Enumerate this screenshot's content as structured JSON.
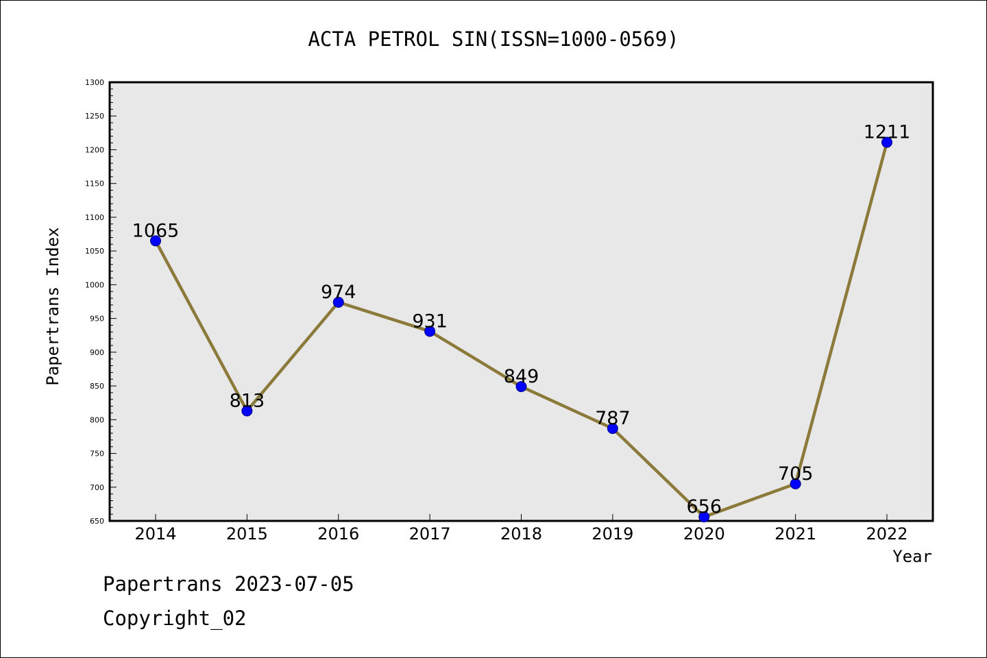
{
  "chart_data": {
    "type": "line",
    "title": "ACTA PETROL SIN(ISSN=1000-0569)",
    "xlabel": "Year",
    "ylabel": "Papertrans Index",
    "categories": [
      "2014",
      "2015",
      "2016",
      "2017",
      "2018",
      "2019",
      "2020",
      "2021",
      "2022"
    ],
    "series": [
      {
        "values": [
          1065,
          813,
          974,
          931,
          849,
          787,
          656,
          705,
          1211
        ]
      }
    ],
    "data_labels": [
      "1065",
      "813",
      "974",
      "931",
      "849",
      "787",
      "656",
      "705",
      "1211"
    ],
    "ylim": [
      650,
      1300
    ],
    "y_ticks": [
      650,
      700,
      750,
      800,
      850,
      900,
      950,
      1000,
      1050,
      1100,
      1150,
      1200,
      1250,
      1300
    ],
    "y_tick_labels": [
      "650",
      "700",
      "750",
      "800",
      "850",
      "900",
      "950",
      "1000",
      "1050",
      "1100",
      "1150",
      "1200",
      "1250",
      "1300"
    ],
    "y_minor_step": 10,
    "grid": false,
    "legend": "none",
    "colors": {
      "line": "#8b7a3a",
      "marker": "#0000ff",
      "marker_edge": "#000080",
      "plot_background": "#e8e8e8",
      "axes": "#000000"
    }
  },
  "footer": {
    "line1": "Papertrans 2023-07-05",
    "line2": "Copyright_02"
  }
}
